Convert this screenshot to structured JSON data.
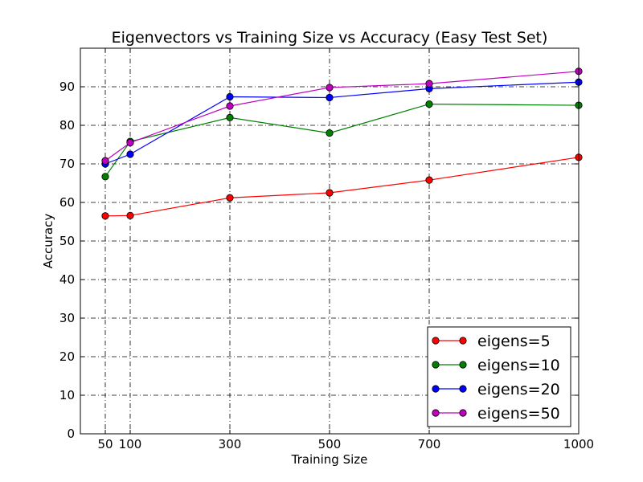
{
  "chart_data": {
    "type": "line",
    "title": "Eigenvectors vs Training Size vs Accuracy (Easy Test Set)",
    "xlabel": "Training Size",
    "ylabel": "Accuracy",
    "xlim": [
      0,
      1000
    ],
    "ylim": [
      0,
      100
    ],
    "x_ticks": [
      50,
      100,
      300,
      500,
      700,
      1000
    ],
    "y_ticks": [
      0,
      10,
      20,
      30,
      40,
      50,
      60,
      70,
      80,
      90
    ],
    "grid": true,
    "legend_position": "lower-right",
    "x": [
      50,
      100,
      300,
      500,
      700,
      1000
    ],
    "series": [
      {
        "name": "eigens=5",
        "color": "#ff0000",
        "values": [
          56.5,
          56.6,
          61.2,
          62.5,
          65.8,
          71.7
        ]
      },
      {
        "name": "eigens=10",
        "color": "#008000",
        "values": [
          66.7,
          75.8,
          82.0,
          78.0,
          85.5,
          85.2
        ]
      },
      {
        "name": "eigens=20",
        "color": "#0000ff",
        "values": [
          70.0,
          72.5,
          87.4,
          87.2,
          89.5,
          91.2
        ]
      },
      {
        "name": "eigens=50",
        "color": "#bf00bf",
        "values": [
          70.8,
          75.5,
          85.0,
          89.8,
          90.8,
          94.0
        ]
      }
    ]
  }
}
